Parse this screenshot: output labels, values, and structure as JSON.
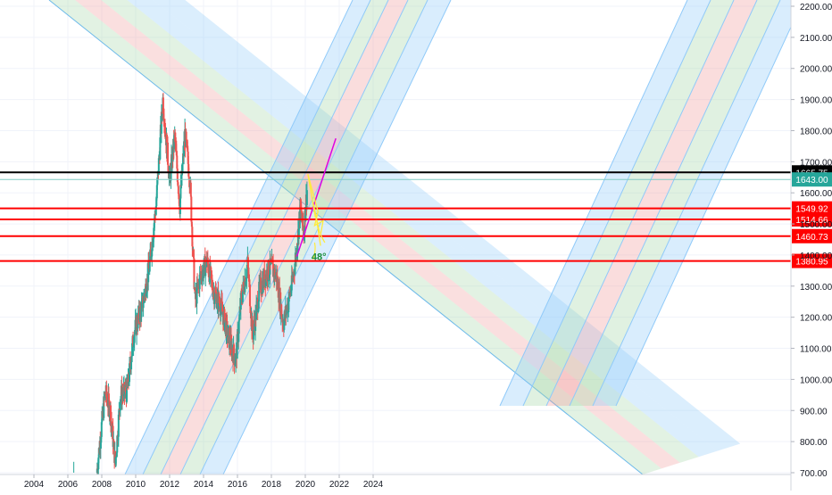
{
  "chart_data": {
    "type": "candlestick",
    "title": "",
    "xlabel": "",
    "ylabel": "",
    "ylim": [
      700,
      2250
    ],
    "xlim": [
      2003.0,
      2024.5
    ],
    "grid": true,
    "y_ticks": [
      "700.00",
      "800.00",
      "900.00",
      "1000.00",
      "1100.00",
      "1200.00",
      "1300.00",
      "1400.00",
      "1500.00",
      "1600.00",
      "1700.00",
      "1800.00",
      "1900.00",
      "2000.00",
      "2100.00",
      "2200.00"
    ],
    "y_tick_values": [
      700,
      800,
      900,
      1000,
      1100,
      1200,
      1300,
      1400,
      1500,
      1600,
      1700,
      1800,
      1900,
      2000,
      2100,
      2200
    ],
    "x_ticks": [
      "2004",
      "2006",
      "2008",
      "2010",
      "2012",
      "2014",
      "2016",
      "2018",
      "2020",
      "2022",
      "2024"
    ],
    "x_tick_values": [
      2004,
      2006,
      2008,
      2010,
      2012,
      2014,
      2016,
      2018,
      2020,
      2022,
      2024
    ],
    "price_path": [
      {
        "x": 2007.7,
        "y": 700
      },
      {
        "x": 2008.2,
        "y": 960
      },
      {
        "x": 2008.5,
        "y": 900
      },
      {
        "x": 2008.8,
        "y": 730
      },
      {
        "x": 2009.1,
        "y": 950
      },
      {
        "x": 2009.5,
        "y": 960
      },
      {
        "x": 2009.9,
        "y": 1150
      },
      {
        "x": 2010.4,
        "y": 1240
      },
      {
        "x": 2010.8,
        "y": 1360
      },
      {
        "x": 2011.2,
        "y": 1560
      },
      {
        "x": 2011.6,
        "y": 1900
      },
      {
        "x": 2012.0,
        "y": 1640
      },
      {
        "x": 2012.3,
        "y": 1780
      },
      {
        "x": 2012.6,
        "y": 1560
      },
      {
        "x": 2012.9,
        "y": 1790
      },
      {
        "x": 2013.2,
        "y": 1640
      },
      {
        "x": 2013.5,
        "y": 1250
      },
      {
        "x": 2013.8,
        "y": 1330
      },
      {
        "x": 2014.2,
        "y": 1380
      },
      {
        "x": 2014.6,
        "y": 1280
      },
      {
        "x": 2015.0,
        "y": 1240
      },
      {
        "x": 2015.5,
        "y": 1130
      },
      {
        "x": 2015.9,
        "y": 1060
      },
      {
        "x": 2016.2,
        "y": 1250
      },
      {
        "x": 2016.6,
        "y": 1370
      },
      {
        "x": 2016.9,
        "y": 1140
      },
      {
        "x": 2017.3,
        "y": 1290
      },
      {
        "x": 2017.7,
        "y": 1340
      },
      {
        "x": 2018.0,
        "y": 1360
      },
      {
        "x": 2018.3,
        "y": 1330
      },
      {
        "x": 2018.7,
        "y": 1180
      },
      {
        "x": 2019.2,
        "y": 1300
      },
      {
        "x": 2019.5,
        "y": 1420
      },
      {
        "x": 2019.7,
        "y": 1550
      },
      {
        "x": 2019.9,
        "y": 1470
      },
      {
        "x": 2020.1,
        "y": 1610
      }
    ],
    "horizontal_levels": [
      {
        "value": 1665.75,
        "label": "1665.75",
        "color": "#000000",
        "label_bg": "#000000",
        "label_fg": "#ffffff"
      },
      {
        "value": 1643.0,
        "label": "1643.00",
        "color": "#80cbc4",
        "label_bg": "#26a69a",
        "label_fg": "#ffffff"
      },
      {
        "value": 1549.92,
        "label": "1549.92",
        "color": "#ff0000",
        "label_bg": "#ff0000",
        "label_fg": "#ffffff"
      },
      {
        "value": 1514.66,
        "label": "1514.66",
        "color": "#ff0000",
        "label_bg": "#ff0000",
        "label_fg": "#ffffff"
      },
      {
        "value": 1460.73,
        "label": "1460.73",
        "color": "#ff0000",
        "label_bg": "#ff0000",
        "label_fg": "#ffffff"
      },
      {
        "value": 1380.95,
        "label": "1380.95",
        "color": "#ff0000",
        "label_bg": "#ff0000",
        "label_fg": "#ffffff"
      }
    ],
    "annotations": [
      {
        "text": "48°",
        "x": 2020.8,
        "y": 1395,
        "color": "#1b8f3a"
      }
    ],
    "trend_line": {
      "x1": 2019.5,
      "y1": 1395,
      "x2": 2021.8,
      "y2": 1775,
      "color": "#e000e0"
    },
    "colors": {
      "bull": "#26a69a",
      "bear": "#ef5350",
      "blue_band": "#90caf9",
      "red_band": "#ef9a9a",
      "green_band": "#a5d6a7",
      "zigzag": "#ffeb3b"
    }
  }
}
